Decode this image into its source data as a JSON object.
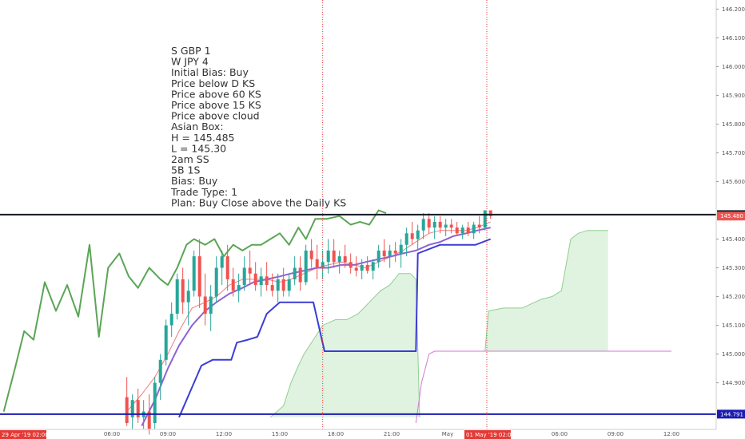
{
  "chart_data": {
    "type": "candlestick",
    "title": "",
    "xlabel": "",
    "ylabel": "",
    "ylim": [
      144.76,
      146.215
    ],
    "grid": false,
    "y_ticks": [
      "146.200",
      "146.100",
      "146.000",
      "145.900",
      "145.800",
      "145.700",
      "145.600",
      "145.400",
      "145.300",
      "145.200",
      "145.100",
      "145.000",
      "144.900"
    ],
    "x_ticks": [
      {
        "label": "06:00",
        "t": 6
      },
      {
        "label": "09:00",
        "t": 9
      },
      {
        "label": "12:00",
        "t": 12
      },
      {
        "label": "15:00",
        "t": 15
      },
      {
        "label": "18:00",
        "t": 18
      },
      {
        "label": "21:00",
        "t": 21
      },
      {
        "label": "May",
        "t": 24
      },
      {
        "label": "06:00",
        "t": 30
      },
      {
        "label": "09:00",
        "t": 33
      },
      {
        "label": "12:00",
        "t": 36
      }
    ],
    "x_start_label": "29 Apr '19  02:00",
    "x_cursor_label": "01 May '19  02:00",
    "price_labels": [
      {
        "text": "145.485",
        "value": 145.485,
        "color": "#131722"
      },
      {
        "text": "145.480",
        "value": 145.48,
        "color": "#ef5350"
      },
      {
        "text": "144.791",
        "value": 144.791,
        "color": "#1c1cb0"
      }
    ],
    "hlines": [
      {
        "value": 145.485,
        "color": "#131722"
      },
      {
        "value": 144.791,
        "color": "#1c1cb0"
      }
    ],
    "vlines": [
      {
        "t": 17.3,
        "color": "#e53935"
      },
      {
        "t": 26.1,
        "color": "#e53935"
      }
    ],
    "candles": [
      [
        6.8,
        144.85,
        144.92,
        144.75,
        144.76
      ],
      [
        7.1,
        144.78,
        144.86,
        144.74,
        144.84
      ],
      [
        7.4,
        144.84,
        144.88,
        144.76,
        144.78
      ],
      [
        7.7,
        144.78,
        144.84,
        144.74,
        144.8
      ],
      [
        8.0,
        144.8,
        144.86,
        144.72,
        144.74
      ],
      [
        8.3,
        144.76,
        144.92,
        144.74,
        144.9
      ],
      [
        8.6,
        144.9,
        145.0,
        144.84,
        144.98
      ],
      [
        8.9,
        144.98,
        145.12,
        144.96,
        145.1
      ],
      [
        9.2,
        145.1,
        145.18,
        145.06,
        145.14
      ],
      [
        9.5,
        145.14,
        145.28,
        145.12,
        145.26
      ],
      [
        9.8,
        145.26,
        145.3,
        145.14,
        145.18
      ],
      [
        10.1,
        145.18,
        145.26,
        145.1,
        145.22
      ],
      [
        10.4,
        145.22,
        145.36,
        145.2,
        145.34
      ],
      [
        10.7,
        145.34,
        145.4,
        145.16,
        145.2
      ],
      [
        11.0,
        145.2,
        145.28,
        145.1,
        145.14
      ],
      [
        11.3,
        145.14,
        145.24,
        145.08,
        145.2
      ],
      [
        11.6,
        145.2,
        145.34,
        145.18,
        145.3
      ],
      [
        11.9,
        145.3,
        145.36,
        145.24,
        145.34
      ],
      [
        12.2,
        145.34,
        145.38,
        145.22,
        145.26
      ],
      [
        12.5,
        145.26,
        145.3,
        145.2,
        145.22
      ],
      [
        12.8,
        145.22,
        145.28,
        145.18,
        145.24
      ],
      [
        13.1,
        145.24,
        145.34,
        145.22,
        145.3
      ],
      [
        13.4,
        145.3,
        145.36,
        145.24,
        145.28
      ],
      [
        13.7,
        145.28,
        145.32,
        145.22,
        145.24
      ],
      [
        14.0,
        145.24,
        145.3,
        145.2,
        145.27
      ],
      [
        14.3,
        145.27,
        145.32,
        145.22,
        145.24
      ],
      [
        14.6,
        145.24,
        145.28,
        145.2,
        145.22
      ],
      [
        14.9,
        145.22,
        145.28,
        145.18,
        145.26
      ],
      [
        15.2,
        145.26,
        145.3,
        145.2,
        145.22
      ],
      [
        15.5,
        145.22,
        145.28,
        145.2,
        145.26
      ],
      [
        15.8,
        145.26,
        145.34,
        145.24,
        145.3
      ],
      [
        16.1,
        145.3,
        145.34,
        145.22,
        145.25
      ],
      [
        16.4,
        145.25,
        145.38,
        145.24,
        145.36
      ],
      [
        16.7,
        145.36,
        145.4,
        145.3,
        145.33
      ],
      [
        17.0,
        145.33,
        145.38,
        145.26,
        145.3
      ],
      [
        17.3,
        145.3,
        145.36,
        145.26,
        145.32
      ],
      [
        17.6,
        145.32,
        145.4,
        145.28,
        145.36
      ],
      [
        17.9,
        145.36,
        145.4,
        145.3,
        145.32
      ],
      [
        18.2,
        145.32,
        145.36,
        145.28,
        145.34
      ],
      [
        18.5,
        145.34,
        145.38,
        145.3,
        145.32
      ],
      [
        18.8,
        145.32,
        145.35,
        145.28,
        145.3
      ],
      [
        19.1,
        145.3,
        145.34,
        145.27,
        145.29
      ],
      [
        19.4,
        145.29,
        145.33,
        145.26,
        145.31
      ],
      [
        19.7,
        145.31,
        145.34,
        145.28,
        145.29
      ],
      [
        20.0,
        145.29,
        145.33,
        145.26,
        145.32
      ],
      [
        20.3,
        145.32,
        145.38,
        145.3,
        145.36
      ],
      [
        20.6,
        145.36,
        145.4,
        145.32,
        145.34
      ],
      [
        20.9,
        145.34,
        145.38,
        145.3,
        145.36
      ],
      [
        21.2,
        145.36,
        145.39,
        145.32,
        145.35
      ],
      [
        21.5,
        145.35,
        145.4,
        145.3,
        145.38
      ],
      [
        21.8,
        145.38,
        145.44,
        145.34,
        145.42
      ],
      [
        22.1,
        145.42,
        145.46,
        145.38,
        145.4
      ],
      [
        22.4,
        145.4,
        145.45,
        145.36,
        145.43
      ],
      [
        22.7,
        145.43,
        145.49,
        145.4,
        145.47
      ],
      [
        23.0,
        145.47,
        145.49,
        145.42,
        145.44
      ],
      [
        23.3,
        145.44,
        145.48,
        145.4,
        145.46
      ],
      [
        23.6,
        145.46,
        145.48,
        145.42,
        145.44
      ],
      [
        23.9,
        145.44,
        145.47,
        145.41,
        145.45
      ],
      [
        24.2,
        145.45,
        145.47,
        145.42,
        145.44
      ],
      [
        24.5,
        145.44,
        145.46,
        145.41,
        145.42
      ],
      [
        24.8,
        145.42,
        145.45,
        145.4,
        145.44
      ],
      [
        25.1,
        145.44,
        145.46,
        145.41,
        145.42
      ],
      [
        25.4,
        145.42,
        145.46,
        145.4,
        145.45
      ],
      [
        25.7,
        145.45,
        145.48,
        145.42,
        145.44
      ],
      [
        26.0,
        145.44,
        145.5,
        145.43,
        145.5
      ],
      [
        26.3,
        145.5,
        145.5,
        145.47,
        145.48
      ]
    ],
    "series": [
      {
        "name": "",
        "color": "#5aa556",
        "values": [
          [
            0.2,
            144.8
          ],
          [
            0.8,
            144.95
          ],
          [
            1.3,
            145.08
          ],
          [
            1.8,
            145.05
          ],
          [
            2.4,
            145.25
          ],
          [
            3.0,
            145.15
          ],
          [
            3.6,
            145.24
          ],
          [
            4.2,
            145.13
          ],
          [
            4.8,
            145.38
          ],
          [
            5.3,
            145.06
          ],
          [
            5.8,
            145.3
          ],
          [
            6.4,
            145.35
          ],
          [
            6.9,
            145.27
          ],
          [
            7.4,
            145.23
          ],
          [
            8.0,
            145.3
          ],
          [
            8.6,
            145.26
          ],
          [
            9.0,
            145.24
          ],
          [
            9.5,
            145.3
          ],
          [
            10.0,
            145.38
          ],
          [
            10.4,
            145.4
          ],
          [
            11.0,
            145.38
          ],
          [
            11.5,
            145.4
          ],
          [
            12.0,
            145.34
          ],
          [
            12.5,
            145.38
          ],
          [
            13.0,
            145.36
          ],
          [
            13.5,
            145.38
          ],
          [
            14.0,
            145.38
          ],
          [
            14.5,
            145.4
          ],
          [
            15.0,
            145.42
          ],
          [
            15.5,
            145.38
          ],
          [
            16.0,
            145.44
          ],
          [
            16.4,
            145.4
          ],
          [
            16.9,
            145.47
          ],
          [
            17.5,
            145.47
          ],
          [
            18.2,
            145.48
          ],
          [
            18.8,
            145.45
          ],
          [
            19.3,
            145.46
          ],
          [
            19.8,
            145.45
          ],
          [
            20.3,
            145.5
          ],
          [
            20.7,
            145.49
          ]
        ]
      },
      {
        "name": "",
        "color": "#ef7c7c",
        "values": [
          [
            6.8,
            144.8
          ],
          [
            7.6,
            144.86
          ],
          [
            8.3,
            144.92
          ],
          [
            9.0,
            145.0
          ],
          [
            9.6,
            145.08
          ],
          [
            10.3,
            145.16
          ],
          [
            11.0,
            145.18
          ],
          [
            11.6,
            145.2
          ],
          [
            12.3,
            145.24
          ],
          [
            13.0,
            145.26
          ],
          [
            13.6,
            145.26
          ],
          [
            14.3,
            145.26
          ],
          [
            15.0,
            145.25
          ],
          [
            15.6,
            145.26
          ],
          [
            16.3,
            145.28
          ],
          [
            17.0,
            145.3
          ],
          [
            17.6,
            145.31
          ],
          [
            18.3,
            145.32
          ],
          [
            19.0,
            145.31
          ],
          [
            19.6,
            145.3
          ],
          [
            20.3,
            145.32
          ],
          [
            21.0,
            145.34
          ],
          [
            21.6,
            145.36
          ],
          [
            22.3,
            145.39
          ],
          [
            23.0,
            145.42
          ],
          [
            23.6,
            145.43
          ],
          [
            24.3,
            145.43
          ],
          [
            25.0,
            145.43
          ],
          [
            25.6,
            145.44
          ],
          [
            26.3,
            145.46
          ]
        ]
      },
      {
        "name": "",
        "color": "#8e63d4",
        "values": [
          [
            7.6,
            144.75
          ],
          [
            8.3,
            144.84
          ],
          [
            9.0,
            144.95
          ],
          [
            9.6,
            145.03
          ],
          [
            10.3,
            145.1
          ],
          [
            11.0,
            145.15
          ],
          [
            11.6,
            145.18
          ],
          [
            12.3,
            145.21
          ],
          [
            13.0,
            145.23
          ],
          [
            13.6,
            145.25
          ],
          [
            14.3,
            145.26
          ],
          [
            15.0,
            145.27
          ],
          [
            15.6,
            145.28
          ],
          [
            16.3,
            145.29
          ],
          [
            17.0,
            145.3
          ],
          [
            17.6,
            145.3
          ],
          [
            18.3,
            145.31
          ],
          [
            19.0,
            145.31
          ],
          [
            19.6,
            145.32
          ],
          [
            20.3,
            145.33
          ],
          [
            21.0,
            145.34
          ],
          [
            21.6,
            145.35
          ],
          [
            22.3,
            145.36
          ],
          [
            23.0,
            145.38
          ],
          [
            23.6,
            145.39
          ],
          [
            24.3,
            145.41
          ],
          [
            25.0,
            145.42
          ],
          [
            25.6,
            145.43
          ],
          [
            26.3,
            145.44
          ]
        ]
      },
      {
        "name": "",
        "color": "#3c3cd6",
        "step": true,
        "values": [
          [
            9.6,
            144.78
          ],
          [
            10.8,
            144.96
          ],
          [
            11.4,
            144.98
          ],
          [
            12.4,
            144.98
          ],
          [
            12.7,
            145.04
          ],
          [
            13.3,
            145.05
          ],
          [
            13.8,
            145.06
          ],
          [
            14.3,
            145.14
          ],
          [
            15.0,
            145.18
          ],
          [
            16.6,
            145.18
          ],
          [
            16.8,
            145.18
          ],
          [
            17.4,
            145.01
          ],
          [
            22.3,
            145.01
          ],
          [
            22.4,
            145.35
          ],
          [
            23.6,
            145.38
          ],
          [
            25.5,
            145.38
          ],
          [
            26.3,
            145.4
          ]
        ]
      },
      {
        "name": "",
        "color": "#d07ad0",
        "values": [
          [
            22.3,
            144.76
          ],
          [
            22.6,
            144.9
          ],
          [
            23.0,
            145.0
          ],
          [
            23.3,
            145.01
          ],
          [
            26.0,
            145.01
          ],
          [
            36.0,
            145.01
          ]
        ]
      }
    ],
    "cloud": {
      "color": "#8fcf8f",
      "span_a": [
        [
          14.5,
          144.78
        ],
        [
          15.2,
          144.82
        ],
        [
          15.6,
          144.9
        ],
        [
          16.0,
          144.96
        ],
        [
          16.3,
          145.0
        ],
        [
          16.8,
          145.05
        ],
        [
          17.3,
          145.1
        ],
        [
          18.0,
          145.12
        ],
        [
          18.6,
          145.12
        ],
        [
          19.2,
          145.14
        ],
        [
          19.8,
          145.18
        ],
        [
          20.4,
          145.22
        ],
        [
          20.9,
          145.24
        ],
        [
          21.4,
          145.28
        ],
        [
          22.0,
          145.28
        ],
        [
          22.3,
          145.26
        ],
        [
          22.5,
          144.78
        ]
      ],
      "span_b": [
        [
          26.0,
          145.01
        ],
        [
          26.2,
          145.15
        ],
        [
          27.0,
          145.16
        ],
        [
          28.0,
          145.16
        ],
        [
          29.0,
          145.19
        ],
        [
          29.6,
          145.2
        ],
        [
          30.1,
          145.22
        ],
        [
          30.6,
          145.4
        ],
        [
          31.0,
          145.42
        ],
        [
          31.5,
          145.43
        ],
        [
          32.0,
          145.43
        ],
        [
          32.6,
          145.43
        ]
      ]
    },
    "annotations": [
      "S GBP 1",
      "W JPY 4",
      "Initial Bias: Buy",
      "Price below D KS",
      "Price above 60 KS",
      "Price above 15 KS",
      "Price above cloud",
      "Asian Box:",
      "H = 145.485",
      "L = 145.30",
      "2am SS",
      "5B 1S",
      "Bias: Buy",
      "Trade Type: 1",
      "Plan: Buy Close above the Daily KS"
    ]
  },
  "colors": {
    "up": "#26a69a",
    "down": "#ef5350",
    "axis_text": "#555555",
    "axis_line": "#cccccc"
  }
}
